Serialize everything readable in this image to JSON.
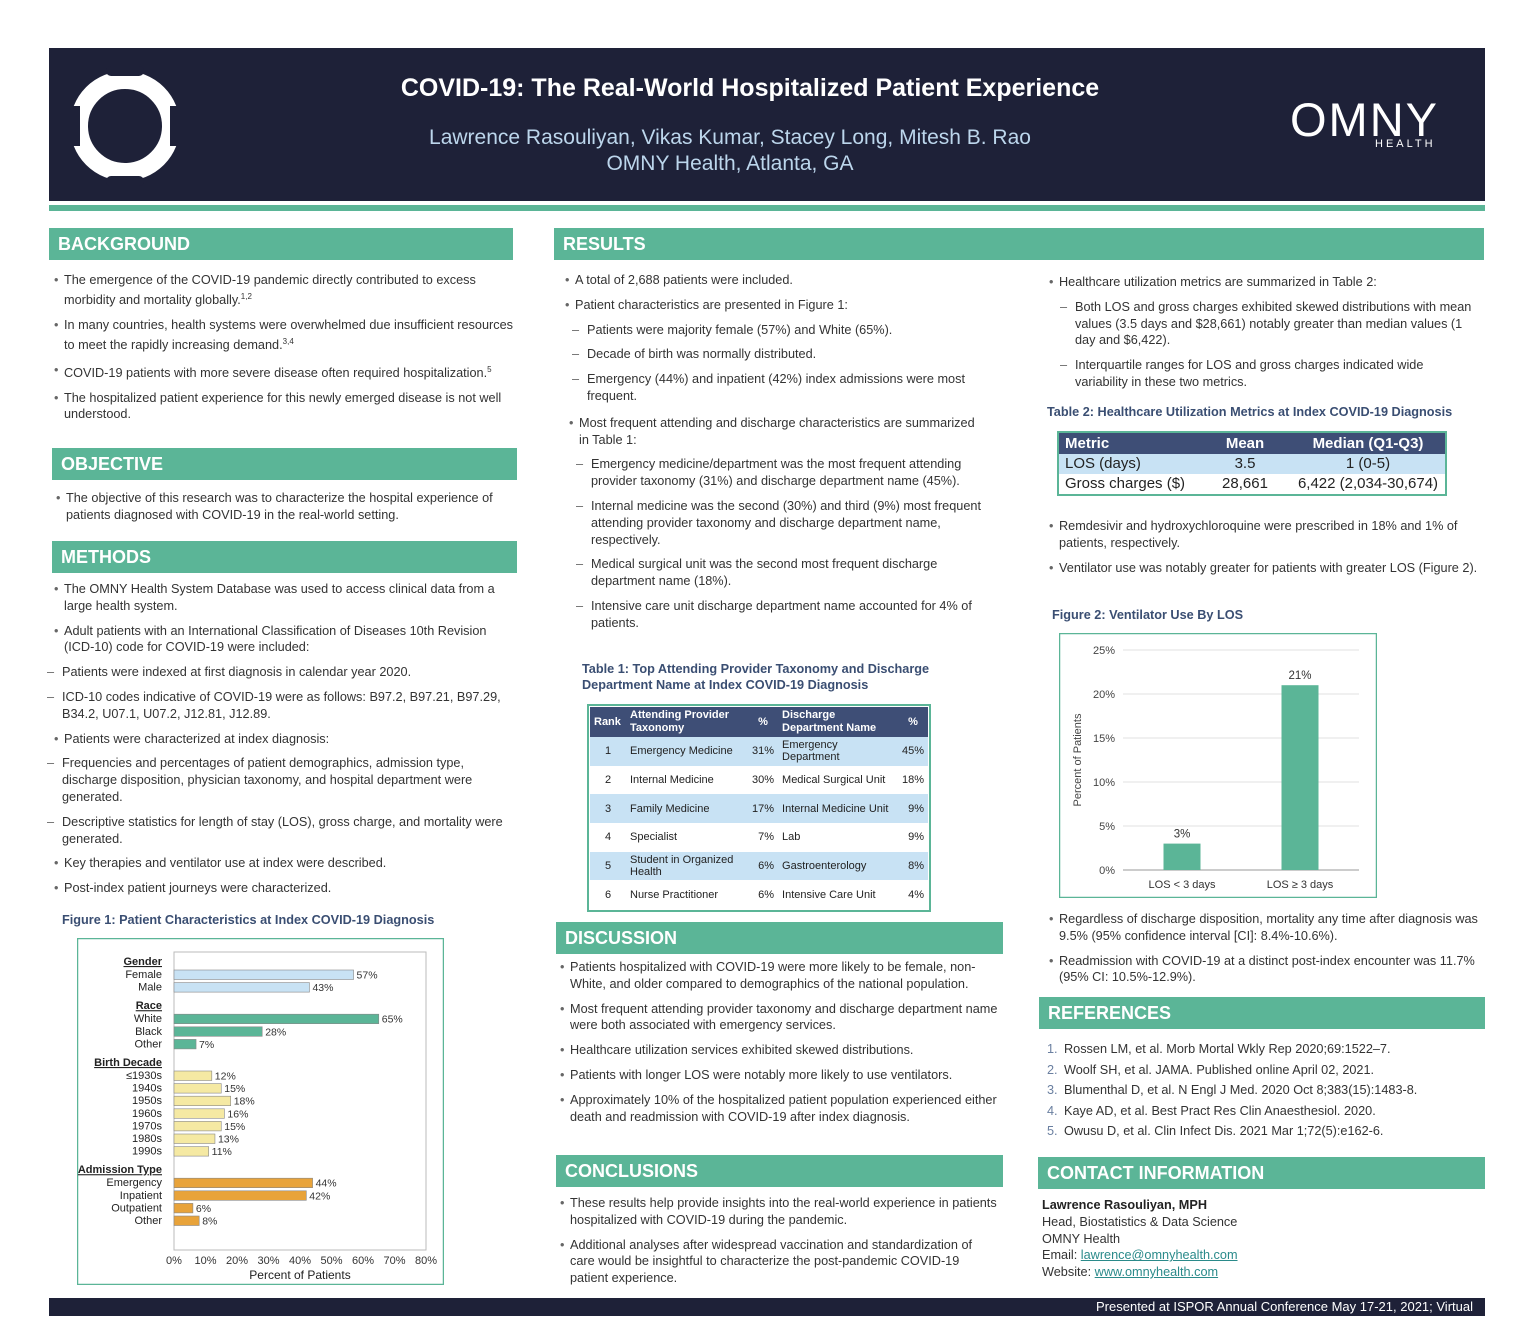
{
  "header": {
    "title": "COVID-19: The Real-World Hospitalized Patient Experience",
    "authors": "Lawrence Rasouliyan, Vikas Kumar, Stacey Long, Mitesh B. Rao",
    "affiliation": "OMNY Health, Atlanta, GA",
    "logo_text": "OMNY",
    "logo_sub": "HEALTH"
  },
  "background": {
    "heading": "BACKGROUND",
    "items": [
      {
        "text": "The emergence of the COVID-19 pandemic directly contributed to excess morbidity and mortality globally.",
        "sup": "1,2"
      },
      {
        "text": "In many countries, health systems were overwhelmed due insufficient resources to meet the rapidly increasing demand.",
        "sup": "3,4"
      },
      {
        "text": "COVID-19 patients with more severe disease often required hospitalization.",
        "sup": "5"
      },
      {
        "text": "The hospitalized patient experience for this newly emerged disease is not well understood.",
        "sup": ""
      }
    ]
  },
  "objective": {
    "heading": "OBJECTIVE",
    "text": "The objective of this research was to characterize the hospital experience of patients diagnosed with COVID-19 in the real-world setting."
  },
  "methods": {
    "heading": "METHODS",
    "m1": "The OMNY Health System Database was used to access clinical data from a large health system.",
    "m2": "Adult patients with an International Classification of Diseases 10th Revision (ICD-10) code for COVID-19 were included:",
    "m2a": "Patients were indexed at first diagnosis in calendar year 2020.",
    "m2b": "ICD-10 codes indicative of COVID-19 were as follows: B97.2, B97.21, B97.29, B34.2, U07.1, U07.2, J12.81, J12.89.",
    "m3": "Patients were characterized at index diagnosis:",
    "m3a": "Frequencies and percentages of patient demographics, admission type, discharge disposition, physician taxonomy, and hospital department were generated.",
    "m3b": "Descriptive statistics for length of stay (LOS), gross charge, and mortality were generated.",
    "m4": "Key therapies and ventilator use at index were described.",
    "m5": "Post-index patient journeys were characterized."
  },
  "figure1": {
    "title": "Figure 1: Patient Characteristics at Index COVID-19 Diagnosis"
  },
  "results": {
    "heading": "RESULTS",
    "r1": "A total of 2,688 patients were included.",
    "r2": "Patient characteristics are presented in Figure 1:",
    "r2a": "Patients were majority female (57%) and White (65%).",
    "r2b": "Decade of birth was normally distributed.",
    "r2c": "Emergency (44%) and inpatient (42%) index admissions were most frequent.",
    "r3": "Most frequent attending and discharge characteristics are summarized in Table 1:",
    "r3a": "Emergency medicine/department was the most frequent attending provider taxonomy (31%) and discharge department name (45%).",
    "r3b": "Internal medicine was the second (30%) and third (9%) most frequent attending provider taxonomy and discharge department name, respectively.",
    "r3c": "Medical surgical unit was the second most frequent discharge department name (18%).",
    "r3d": "Intensive care unit discharge department name accounted for 4% of patients.",
    "r4": "Healthcare utilization metrics are summarized in Table 2:",
    "r4a": "Both LOS and gross charges exhibited skewed distributions with mean values (3.5 days and $28,661) notably greater than median values (1 day and $6,422).",
    "r4b": "Interquartile ranges for LOS and gross charges indicated wide variability in these two metrics.",
    "r5": "Remdesivir and hydroxychloroquine were prescribed in 18% and 1% of patients, respectively.",
    "r6": "Ventilator use was notably greater for patients with greater LOS (Figure 2).",
    "r7": "Regardless of discharge disposition, mortality any time after diagnosis was 9.5% (95% confidence interval [CI]: 8.4%-10.6%).",
    "r8": "Readmission with COVID-19 at a distinct post-index encounter was 11.7% (95% CI: 10.5%-12.9%)."
  },
  "table1": {
    "title": "Table 1: Top Attending Provider Taxonomy and Discharge Department Name at Index COVID-19 Diagnosis",
    "headers": [
      "Rank",
      "Attending Provider Taxonomy",
      "%",
      "Discharge Department Name",
      "%"
    ],
    "rows": [
      [
        "1",
        "Emergency Medicine",
        "31%",
        "Emergency Department",
        "45%"
      ],
      [
        "2",
        "Internal Medicine",
        "30%",
        "Medical Surgical Unit",
        "18%"
      ],
      [
        "3",
        "Family Medicine",
        "17%",
        "Internal Medicine Unit",
        "9%"
      ],
      [
        "4",
        "Specialist",
        "7%",
        "Lab",
        "9%"
      ],
      [
        "5",
        "Student in Organized Health",
        "6%",
        "Gastroenterology",
        "8%"
      ],
      [
        "6",
        "Nurse Practitioner",
        "6%",
        "Intensive Care Unit",
        "4%"
      ]
    ]
  },
  "table2": {
    "title": "Table 2: Healthcare Utilization Metrics at Index COVID-19 Diagnosis",
    "headers": [
      "Metric",
      "Mean",
      "Median (Q1-Q3)"
    ],
    "rows": [
      [
        "LOS (days)",
        "3.5",
        "1 (0-5)"
      ],
      [
        "Gross charges ($)",
        "28,661",
        "6,422 (2,034-30,674)"
      ]
    ]
  },
  "figure2": {
    "title": "Figure 2: Ventilator Use By LOS"
  },
  "discussion": {
    "heading": "DISCUSSION",
    "items": [
      "Patients hospitalized with COVID-19 were more likely to be female, non-White, and older compared to demographics of the national population.",
      "Most frequent attending provider taxonomy and discharge department name were both associated with emergency services.",
      "Healthcare utilization services exhibited skewed distributions.",
      "Patients with longer LOS were notably more likely to use ventilators.",
      "Approximately 10% of the hospitalized patient population experienced either death and readmission with COVID-19 after index diagnosis."
    ]
  },
  "conclusions": {
    "heading": "CONCLUSIONS",
    "items": [
      "These results help provide insights into the real-world experience in patients hospitalized with COVID-19 during the pandemic.",
      "Additional analyses after widespread vaccination and standardization of care would be insightful to characterize the post-pandemic COVID-19 patient experience."
    ]
  },
  "references": {
    "heading": "REFERENCES",
    "items": [
      "Rossen LM, et al. Morb Mortal Wkly Rep 2020;69:1522–7.",
      "Woolf SH, et al. JAMA. Published online April 02, 2021.",
      "Blumenthal D, et al. N Engl J Med. 2020 Oct 8;383(15):1483-8.",
      "Kaye AD, et al. Best Pract Res Clin Anaesthesiol. 2020.",
      "Owusu D, et al. Clin Infect Dis. 2021 Mar 1;72(5):e162-6."
    ]
  },
  "contact": {
    "heading": "CONTACT INFORMATION",
    "name": "Lawrence Rasouliyan, MPH",
    "role": "Head, Biostatistics & Data Science",
    "org": "OMNY Health",
    "email_label": "Email:",
    "email": "lawrence@omnyhealth.com",
    "website_label": "Website:",
    "website": "www.omnyhealth.com"
  },
  "footer": "Presented at ISPOR Annual Conference May 17-21, 2021; Virtual",
  "colors": {
    "navy": "#1e2138",
    "teal": "#5bb597",
    "light_blue": "#c8e2f4",
    "gold": "#f5e9a3",
    "orange": "#e8a33a"
  },
  "chart_data": [
    {
      "type": "bar",
      "orientation": "horizontal",
      "title": "Figure 1: Patient Characteristics at Index COVID-19 Diagnosis",
      "xlabel": "Percent of Patients",
      "xlim": [
        0,
        80
      ],
      "xticks": [
        "0%",
        "10%",
        "20%",
        "30%",
        "40%",
        "50%",
        "60%",
        "70%",
        "80%"
      ],
      "groups": [
        {
          "name": "Gender",
          "color": "light_blue",
          "categories": [
            "Female",
            "Male"
          ],
          "values": [
            57,
            43
          ]
        },
        {
          "name": "Race",
          "color": "teal",
          "categories": [
            "White",
            "Black",
            "Other"
          ],
          "values": [
            65,
            28,
            7
          ]
        },
        {
          "name": "Birth Decade",
          "color": "gold",
          "categories": [
            "≤1930s",
            "1940s",
            "1950s",
            "1960s",
            "1970s",
            "1980s",
            "1990s"
          ],
          "values": [
            12,
            15,
            18,
            16,
            15,
            13,
            11
          ]
        },
        {
          "name": "Admission Type",
          "color": "orange",
          "categories": [
            "Emergency",
            "Inpatient",
            "Outpatient",
            "Other"
          ],
          "values": [
            44,
            42,
            6,
            8
          ]
        }
      ]
    },
    {
      "type": "bar",
      "title": "Figure 2: Ventilator Use By LOS",
      "categories": [
        "LOS < 3 days",
        "LOS ≥ 3 days"
      ],
      "values": [
        3,
        21
      ],
      "labels": [
        "3%",
        "21%"
      ],
      "ylabel": "Percent of Patients",
      "ylim": [
        0,
        25
      ],
      "yticks": [
        "0%",
        "5%",
        "10%",
        "15%",
        "20%",
        "25%"
      ]
    }
  ]
}
